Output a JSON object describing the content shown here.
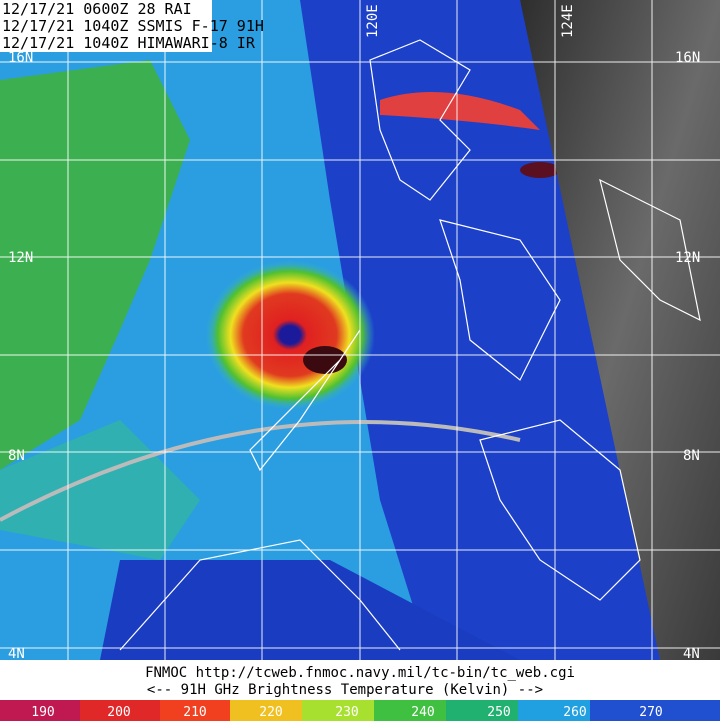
{
  "header": {
    "lines": [
      "12/17/21 0600Z  28 RAI",
      "12/17/21 1040Z  SSMIS F-17 91H",
      "12/17/21 1040Z  HIMAWARI-8 IR"
    ]
  },
  "lat_labels_left": [
    "16N",
    "12N",
    "8N",
    "4N"
  ],
  "lat_labels_right": [
    "16N",
    "12N",
    "8N",
    "4N"
  ],
  "lon_labels": [
    "120E",
    "124E"
  ],
  "footer": {
    "source": "FNMOC  http://tcweb.fnmoc.navy.mil/tc-bin/tc_web.cgi",
    "legend_title": "<--  91H GHz Brightness Temperature (Kelvin)  -->"
  },
  "colorbar": {
    "ticks": [
      190,
      200,
      210,
      220,
      230,
      240,
      250,
      260,
      270
    ]
  }
}
